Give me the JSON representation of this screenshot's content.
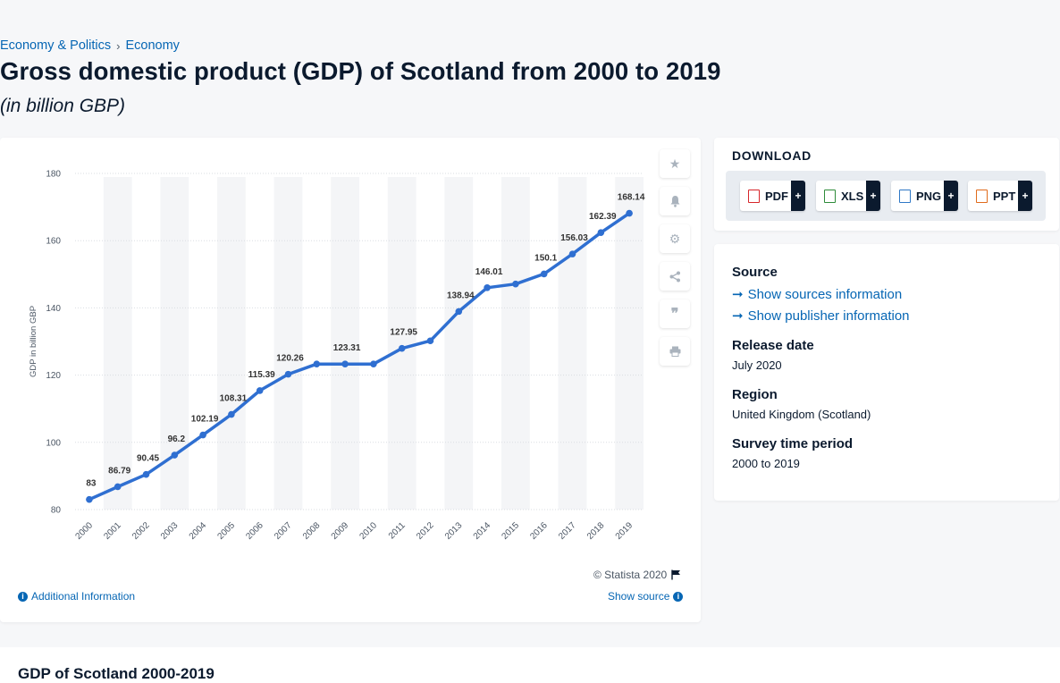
{
  "breadcrumb": {
    "item1": "Economy & Politics",
    "sep": "›",
    "item2": "Economy"
  },
  "title": "Gross domestic product (GDP) of Scotland from 2000 to 2019",
  "subtitle": "(in billion GBP)",
  "chart": {
    "copyright": "© Statista 2020",
    "additional_info": "Additional Information",
    "show_source": "Show source"
  },
  "tools": [
    "star-icon",
    "bell-icon",
    "gear-icon",
    "share-icon",
    "quote-icon",
    "print-icon"
  ],
  "download": {
    "title": "DOWNLOAD",
    "buttons": [
      {
        "label": "PDF",
        "plus": "+",
        "color": "#d7262b"
      },
      {
        "label": "XLS",
        "plus": "+",
        "color": "#2e8b3a"
      },
      {
        "label": "PNG",
        "plus": "+",
        "color": "#2f78c6"
      },
      {
        "label": "PPT",
        "plus": "+",
        "color": "#e06b1c"
      }
    ]
  },
  "meta": {
    "source_label": "Source",
    "sources_link": "Show sources information",
    "publisher_link": "Show publisher information",
    "release_label": "Release date",
    "release_value": "July 2020",
    "region_label": "Region",
    "region_value": "United Kingdom (Scotland)",
    "period_label": "Survey time period",
    "period_value": "2000 to 2019"
  },
  "bottom": {
    "title": "GDP of Scotland 2000-2019"
  },
  "colors": {
    "line": "#2f6fd1",
    "link": "#0666b4",
    "band": "#f4f5f7"
  },
  "chart_data": {
    "type": "line",
    "x": [
      "2000",
      "2001",
      "2002",
      "2003",
      "2004",
      "2005",
      "2006",
      "2007",
      "2008",
      "2009",
      "2010",
      "2011",
      "2012",
      "2013",
      "2014",
      "2015",
      "2016",
      "2017",
      "2018",
      "2019"
    ],
    "series": [
      {
        "values": [
          83,
          86.79,
          90.45,
          96.2,
          102.19,
          108.31,
          115.39,
          120.26,
          123.3,
          123.31,
          123.3,
          127.95,
          130.2,
          138.94,
          146.01,
          147.1,
          150.1,
          156.03,
          162.39,
          168.14
        ]
      }
    ],
    "data_labels": [
      "83",
      "86.79",
      "90.45",
      "96.2",
      "102.19",
      "108.31",
      "115.39",
      "120.26",
      "",
      "123.31",
      "",
      "127.95",
      "",
      "138.94",
      "146.01",
      "",
      "150.1",
      "156.03",
      "162.39",
      "168.14"
    ],
    "ylabel": "GDP in billion GBP",
    "yticks": [
      80,
      100,
      120,
      140,
      160,
      180
    ],
    "ylim": [
      80,
      180
    ],
    "grid": true
  }
}
